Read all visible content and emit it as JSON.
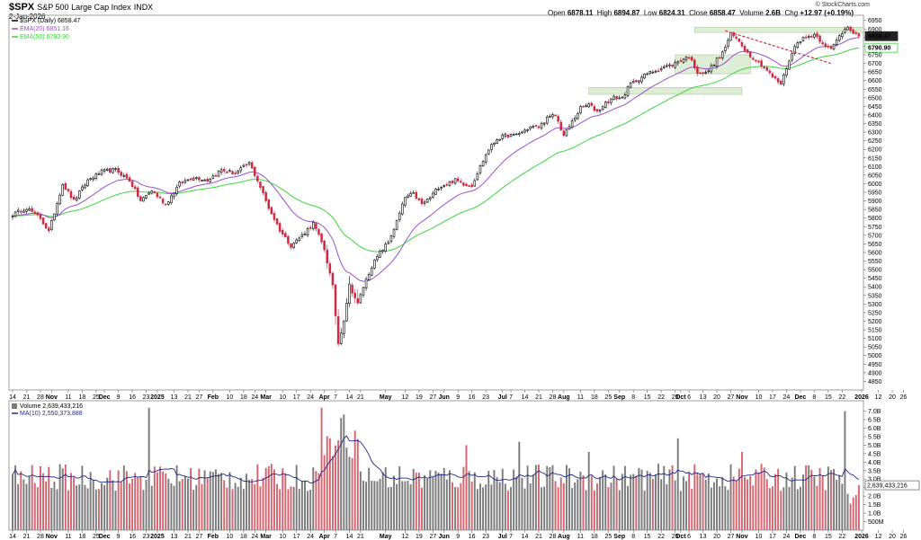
{
  "header": {
    "symbol": "$SPX",
    "name": "S&P 500 Large Cap Index",
    "exchange": "INDX",
    "date": "2-Jan-2026",
    "brand": "© StockCharts.com",
    "open_label": "Open",
    "open": "6878.11",
    "high_label": "High",
    "high": "6894.87",
    "low_label": "Low",
    "low": "6824.31",
    "close_label": "Close",
    "close": "6858.47",
    "volume_label": "Volume",
    "volume": "2.6B",
    "chg_label": "Chg",
    "chg": "+12.97 (+0.19%)"
  },
  "colors": {
    "up": "#000000",
    "down": "#cc2a44",
    "ema20": "#9b4fd1",
    "ema50": "#3ed43e",
    "vol_up": "#7a7a7a",
    "vol_down": "#d4646f",
    "vol_ma": "#1f2a8a",
    "zone": "#cfe5c4",
    "trend": "#cc2a44"
  },
  "chart_data": {
    "type": "candlestick",
    "title": "$SPX (Daily) 6858.47",
    "legend": [
      {
        "name": "$SPX (Daily) 6858.47",
        "color": "#000000"
      },
      {
        "name": "EMA(20) 6851.16",
        "color": "#9b4fd1"
      },
      {
        "name": "EMA(50) 6790.90",
        "color": "#3ed43e"
      }
    ],
    "ylim": [
      4800,
      6980
    ],
    "yticks": [
      4850,
      4900,
      4950,
      5000,
      5050,
      5100,
      5150,
      5200,
      5250,
      5300,
      5350,
      5400,
      5450,
      5500,
      5550,
      5600,
      5650,
      5700,
      5750,
      5800,
      5850,
      5900,
      5950,
      6000,
      6050,
      6100,
      6150,
      6200,
      6250,
      6300,
      6350,
      6400,
      6450,
      6500,
      6550,
      6600,
      6650,
      6700,
      6750,
      6800,
      6850,
      6900,
      6950
    ],
    "price_badges": [
      {
        "label": "6858.47",
        "value": 6858.47,
        "style": "dark"
      },
      {
        "label": "6790.90",
        "value": 6790.9,
        "style": "green"
      }
    ],
    "xticks": [
      {
        "label": "14",
        "i": 0
      },
      {
        "label": "21",
        "i": 5
      },
      {
        "label": "28",
        "i": 10
      },
      {
        "label": "Nov",
        "i": 14,
        "bold": true
      },
      {
        "label": "11",
        "i": 20
      },
      {
        "label": "18",
        "i": 25
      },
      {
        "label": "25",
        "i": 30
      },
      {
        "label": "Dec",
        "i": 33,
        "bold": true
      },
      {
        "label": "9",
        "i": 38
      },
      {
        "label": "16",
        "i": 43
      },
      {
        "label": "23",
        "i": 48
      },
      {
        "label": "2025",
        "i": 52,
        "bold": true
      },
      {
        "label": "13",
        "i": 58
      },
      {
        "label": "21",
        "i": 63
      },
      {
        "label": "27",
        "i": 67
      },
      {
        "label": "Feb",
        "i": 72,
        "bold": true
      },
      {
        "label": "10",
        "i": 78
      },
      {
        "label": "18",
        "i": 83
      },
      {
        "label": "24",
        "i": 87
      },
      {
        "label": "Mar",
        "i": 91,
        "bold": true
      },
      {
        "label": "10",
        "i": 97
      },
      {
        "label": "17",
        "i": 102
      },
      {
        "label": "24",
        "i": 107
      },
      {
        "label": "Apr",
        "i": 112,
        "bold": true
      },
      {
        "label": "7",
        "i": 116
      },
      {
        "label": "14",
        "i": 121
      },
      {
        "label": "21",
        "i": 125
      },
      {
        "label": "May",
        "i": 134,
        "bold": true
      },
      {
        "label": "12",
        "i": 141
      },
      {
        "label": "19",
        "i": 146
      },
      {
        "label": "27",
        "i": 151
      },
      {
        "label": "Jun",
        "i": 155,
        "bold": true
      },
      {
        "label": "9",
        "i": 160
      },
      {
        "label": "16",
        "i": 165
      },
      {
        "label": "23",
        "i": 170
      },
      {
        "label": "Jul",
        "i": 176,
        "bold": true
      },
      {
        "label": "7",
        "i": 179
      },
      {
        "label": "14",
        "i": 184
      },
      {
        "label": "21",
        "i": 189
      },
      {
        "label": "28",
        "i": 194
      },
      {
        "label": "Aug",
        "i": 198,
        "bold": true
      },
      {
        "label": "11",
        "i": 204
      },
      {
        "label": "18",
        "i": 209
      },
      {
        "label": "25",
        "i": 214
      },
      {
        "label": "Sep",
        "i": 218,
        "bold": true
      },
      {
        "label": "8",
        "i": 223
      },
      {
        "label": "15",
        "i": 228
      },
      {
        "label": "22",
        "i": 233
      },
      {
        "label": "29",
        "i": 238
      },
      {
        "label": "Oct",
        "i": 240,
        "bold": true
      },
      {
        "label": "6",
        "i": 243
      },
      {
        "label": "13",
        "i": 248
      },
      {
        "label": "20",
        "i": 253
      },
      {
        "label": "27",
        "i": 258
      },
      {
        "label": "Nov",
        "i": 262,
        "bold": true
      },
      {
        "label": "10",
        "i": 268
      },
      {
        "label": "17",
        "i": 273
      },
      {
        "label": "24",
        "i": 278
      },
      {
        "label": "Dec",
        "i": 283,
        "bold": true
      },
      {
        "label": "8",
        "i": 288
      },
      {
        "label": "15",
        "i": 293
      },
      {
        "label": "22",
        "i": 298
      },
      {
        "label": "2026",
        "i": 305,
        "bold": true
      },
      {
        "label": "12",
        "i": 311
      },
      {
        "label": "20",
        "i": 316
      },
      {
        "label": "26",
        "i": 320
      }
    ],
    "anchors": [
      [
        0,
        5820
      ],
      [
        5,
        5860
      ],
      [
        10,
        5800
      ],
      [
        13,
        5720
      ],
      [
        18,
        6000
      ],
      [
        22,
        5900
      ],
      [
        27,
        6020
      ],
      [
        32,
        6070
      ],
      [
        37,
        6080
      ],
      [
        42,
        6020
      ],
      [
        46,
        5900
      ],
      [
        50,
        5960
      ],
      [
        55,
        5880
      ],
      [
        60,
        6000
      ],
      [
        65,
        6040
      ],
      [
        70,
        6020
      ],
      [
        75,
        6080
      ],
      [
        80,
        6060
      ],
      [
        85,
        6120
      ],
      [
        88,
        6020
      ],
      [
        92,
        5860
      ],
      [
        96,
        5730
      ],
      [
        100,
        5640
      ],
      [
        104,
        5700
      ],
      [
        108,
        5770
      ],
      [
        112,
        5620
      ],
      [
        115,
        5400
      ],
      [
        117,
        5070
      ],
      [
        119,
        5210
      ],
      [
        121,
        5410
      ],
      [
        124,
        5300
      ],
      [
        126,
        5400
      ],
      [
        129,
        5520
      ],
      [
        132,
        5600
      ],
      [
        135,
        5660
      ],
      [
        138,
        5780
      ],
      [
        141,
        5920
      ],
      [
        144,
        5940
      ],
      [
        147,
        5880
      ],
      [
        150,
        5920
      ],
      [
        153,
        5980
      ],
      [
        156,
        6000
      ],
      [
        159,
        6020
      ],
      [
        162,
        6000
      ],
      [
        165,
        5990
      ],
      [
        168,
        6100
      ],
      [
        171,
        6200
      ],
      [
        174,
        6260
      ],
      [
        177,
        6280
      ],
      [
        180,
        6280
      ],
      [
        183,
        6300
      ],
      [
        186,
        6330
      ],
      [
        189,
        6330
      ],
      [
        192,
        6380
      ],
      [
        195,
        6400
      ],
      [
        198,
        6280
      ],
      [
        201,
        6360
      ],
      [
        204,
        6440
      ],
      [
        207,
        6460
      ],
      [
        210,
        6420
      ],
      [
        213,
        6470
      ],
      [
        216,
        6500
      ],
      [
        219,
        6500
      ],
      [
        222,
        6580
      ],
      [
        225,
        6610
      ],
      [
        228,
        6640
      ],
      [
        231,
        6660
      ],
      [
        234,
        6680
      ],
      [
        237,
        6690
      ],
      [
        240,
        6720
      ],
      [
        243,
        6740
      ],
      [
        246,
        6650
      ],
      [
        249,
        6640
      ],
      [
        252,
        6700
      ],
      [
        255,
        6760
      ],
      [
        258,
        6870
      ],
      [
        261,
        6830
      ],
      [
        264,
        6760
      ],
      [
        267,
        6720
      ],
      [
        270,
        6680
      ],
      [
        273,
        6620
      ],
      [
        276,
        6580
      ],
      [
        279,
        6720
      ],
      [
        282,
        6830
      ],
      [
        285,
        6850
      ],
      [
        288,
        6870
      ],
      [
        291,
        6820
      ],
      [
        294,
        6780
      ],
      [
        297,
        6860
      ],
      [
        300,
        6920
      ],
      [
        302,
        6880
      ],
      [
        304,
        6858.47
      ]
    ],
    "ema20_last": 6851.16,
    "ema50_last": 6790.9,
    "bars": 305,
    "zones": [
      {
        "x0": 245,
        "x1": 306,
        "y0": 6880,
        "y1": 6910
      },
      {
        "x0": 238,
        "x1": 265,
        "y0": 6640,
        "y1": 6750
      },
      {
        "x0": 207,
        "x1": 262,
        "y0": 6520,
        "y1": 6560
      }
    ],
    "trendline": {
      "i0": 256,
      "v0": 6890,
      "i1": 294,
      "v1": 6700
    },
    "volume": {
      "label": "Volume 2,639,433,216",
      "ma_label": "MA(10) 2,550,373,888",
      "badge": "2,639,433,216",
      "ylim": [
        0,
        7.4
      ],
      "yticks": [
        {
          "v": 0.5,
          "label": "500M"
        },
        {
          "v": 1.0,
          "label": "1.0B"
        },
        {
          "v": 1.5,
          "label": "1.5B"
        },
        {
          "v": 2.0,
          "label": "2.0B"
        },
        {
          "v": 2.5,
          "label": "2.5B"
        },
        {
          "v": 3.0,
          "label": "3.0B"
        },
        {
          "v": 3.5,
          "label": "3.5B"
        },
        {
          "v": 4.0,
          "label": "4.0B"
        },
        {
          "v": 4.5,
          "label": "4.5B"
        },
        {
          "v": 5.0,
          "label": "5.0B"
        },
        {
          "v": 5.5,
          "label": "5.5B"
        },
        {
          "v": 6.0,
          "label": "6.0B"
        },
        {
          "v": 6.5,
          "label": "6.5B"
        },
        {
          "v": 7.0,
          "label": "7.0B"
        }
      ],
      "spikes": [
        {
          "i": 49,
          "v": 7.2
        },
        {
          "i": 111,
          "v": 7.2
        },
        {
          "i": 118,
          "v": 6.6
        },
        {
          "i": 119,
          "v": 6.8
        },
        {
          "i": 182,
          "v": 5.2
        },
        {
          "i": 163,
          "v": 5.0
        },
        {
          "i": 239,
          "v": 5.4
        },
        {
          "i": 299,
          "v": 7.0
        },
        {
          "i": 262,
          "v": 4.6
        },
        {
          "i": 207,
          "v": 4.6
        }
      ]
    }
  }
}
